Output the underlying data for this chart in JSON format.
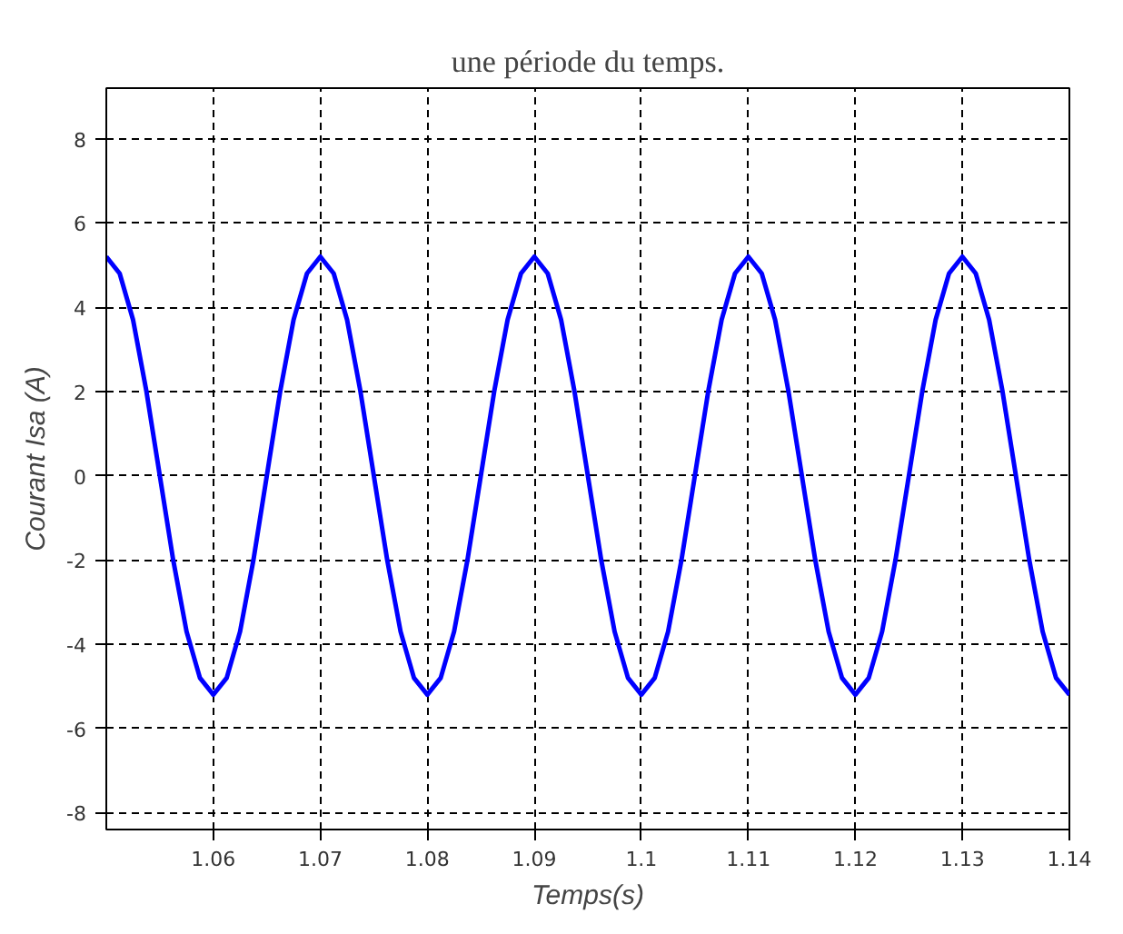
{
  "chart_data": {
    "type": "line",
    "title": "une période du temps.",
    "xlabel": "Temps(s)",
    "ylabel": "Courant Isa (A)",
    "x": [
      1.05,
      1.05125,
      1.0525,
      1.05375,
      1.055,
      1.05625,
      1.0575,
      1.05875,
      1.06,
      1.06125,
      1.0625,
      1.06375,
      1.065,
      1.06625,
      1.0675,
      1.06875,
      1.07,
      1.07125,
      1.0725,
      1.07375,
      1.075,
      1.07625,
      1.0775,
      1.07875,
      1.08,
      1.08125,
      1.0825,
      1.08375,
      1.085,
      1.08625,
      1.0875,
      1.08875,
      1.09,
      1.09125,
      1.0925,
      1.09375,
      1.095,
      1.09625,
      1.0975,
      1.09875,
      1.1,
      1.10125,
      1.1025,
      1.10375,
      1.105,
      1.10625,
      1.1075,
      1.10875,
      1.11,
      1.11125,
      1.1125,
      1.11375,
      1.115,
      1.11625,
      1.1175,
      1.11875,
      1.12,
      1.12125,
      1.1225,
      1.12375,
      1.125,
      1.12625,
      1.1275,
      1.12875,
      1.13,
      1.13125,
      1.1325,
      1.13375,
      1.135,
      1.13625,
      1.1375,
      1.13875,
      1.14
    ],
    "series": [
      {
        "color": "#0000ff",
        "values": [
          5.2,
          4.8,
          3.7,
          2.0,
          0,
          -2.0,
          -3.7,
          -4.8,
          -5.2,
          -4.8,
          -3.7,
          -2.0,
          0,
          2.0,
          3.7,
          4.8,
          5.2,
          4.8,
          3.7,
          2.0,
          0,
          -2.0,
          -3.7,
          -4.8,
          -5.2,
          -4.8,
          -3.7,
          -2.0,
          0,
          2.0,
          3.7,
          4.8,
          5.2,
          4.8,
          3.7,
          2.0,
          0,
          -2.0,
          -3.7,
          -4.8,
          -5.2,
          -4.8,
          -3.7,
          -2.0,
          0,
          2.0,
          3.7,
          4.8,
          5.2,
          4.8,
          3.7,
          2.0,
          0,
          -2.0,
          -3.7,
          -4.8,
          -5.2,
          -4.8,
          -3.7,
          -2.0,
          0,
          2.0,
          3.7,
          4.8,
          5.2,
          4.8,
          3.7,
          2.0,
          0,
          -2.0,
          -3.7,
          -4.8,
          -5.2
        ]
      }
    ],
    "xlim": [
      1.05,
      1.14
    ],
    "ylim": [
      -8.4,
      9.2
    ],
    "xticks": [
      1.06,
      1.07,
      1.08,
      1.09,
      1.1,
      1.11,
      1.12,
      1.13,
      1.14
    ],
    "yticks": [
      -8,
      -6,
      -4,
      -2,
      0,
      2,
      4,
      6,
      8
    ],
    "grid": true,
    "line_style": "solid"
  }
}
